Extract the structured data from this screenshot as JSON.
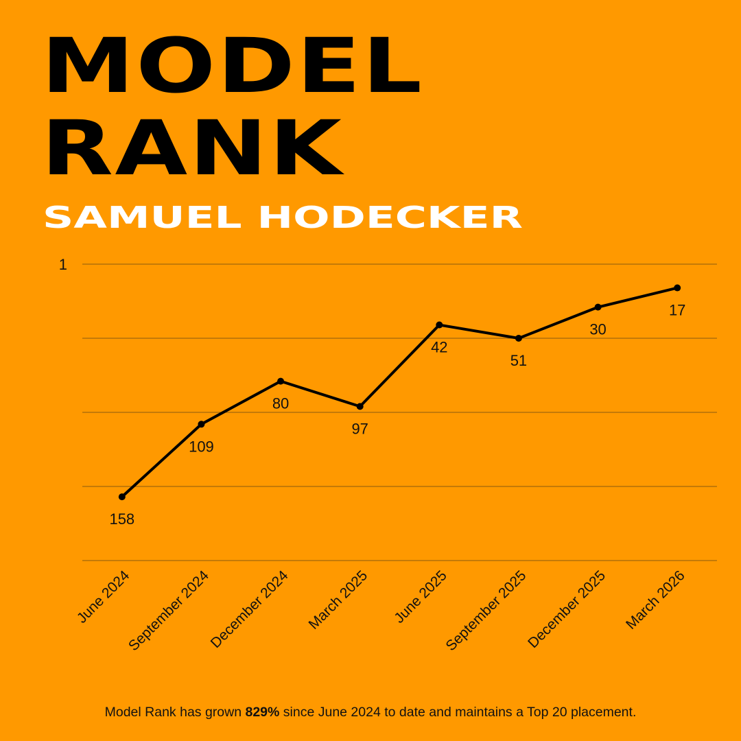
{
  "chart_data": {
    "type": "line",
    "title": "MODEL RANK",
    "subtitle": "SAMUEL HODECKER",
    "categories": [
      "June 2024",
      "September 2024",
      "December 2024",
      "March 2025",
      "June 2025",
      "September 2025",
      "December 2025",
      "March 2026"
    ],
    "values": [
      158,
      109,
      80,
      97,
      42,
      51,
      30,
      17
    ],
    "color": "#000000",
    "ylim": [
      201,
      1
    ],
    "yticks": [
      1
    ],
    "ygrid": [
      1,
      51,
      101,
      151,
      201
    ],
    "grid": true,
    "footnote_before": "Model Rank has grown",
    "footnote_highlight": "829%",
    "footnote_after": "since June 2024 to date and maintains a Top 20 placement."
  }
}
